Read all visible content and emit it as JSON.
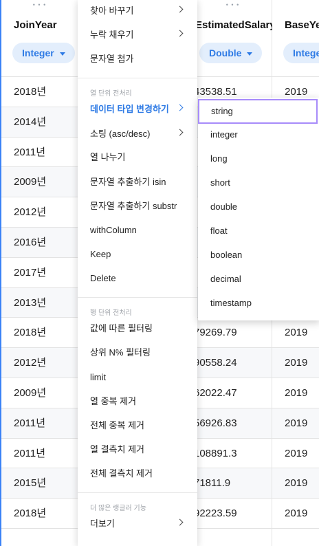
{
  "columns": {
    "join": {
      "name": "JoinYear",
      "type": "Integer",
      "values": [
        "2018년",
        "2014년",
        "2011년",
        "2009년",
        "2012년",
        "2016년",
        "2017년",
        "2013년",
        "2018년",
        "2012년",
        "2009년",
        "2011년",
        "2011년",
        "2015년",
        "2018년"
      ]
    },
    "est": {
      "name": "EstimatedSalary",
      "type": "Double",
      "values": [
        "43538.51",
        "",
        "",
        "",
        "",
        "",
        "",
        "",
        "79269.79",
        "90558.24",
        "62022.47",
        "56926.83",
        "108891.3",
        "71811.9",
        "92223.59"
      ]
    },
    "base": {
      "name": "BaseYe",
      "type": "Intege",
      "values": [
        "2019",
        "",
        "",
        "",
        "",
        "",
        "",
        "",
        "2019",
        "2019",
        "2019",
        "2019",
        "2019",
        "2019",
        "2019"
      ]
    }
  },
  "menu": {
    "items_top": [
      {
        "label": "찾아 바꾸기",
        "has_submenu": true
      },
      {
        "label": "누락 채우기",
        "has_submenu": true
      },
      {
        "label": "문자열 첨가",
        "has_submenu": false
      }
    ],
    "section_col": "열 단위 전처리",
    "items_col": [
      {
        "label": "데이터 타입 변경하기",
        "has_submenu": true,
        "active": true
      },
      {
        "label": "소팅 (asc/desc)",
        "has_submenu": true
      },
      {
        "label": "열 나누기",
        "has_submenu": false
      },
      {
        "label": "문자열 추출하기 isin",
        "has_submenu": false
      },
      {
        "label": "문자열 추출하기 substr",
        "has_submenu": false
      },
      {
        "label": "withColumn",
        "has_submenu": false
      },
      {
        "label": "Keep",
        "has_submenu": false
      },
      {
        "label": "Delete",
        "has_submenu": false
      }
    ],
    "section_row": "행 단위 전처리",
    "items_row": [
      {
        "label": "값에 따른 필터링",
        "has_submenu": false
      },
      {
        "label": "상위 N% 필터링",
        "has_submenu": false
      },
      {
        "label": "limit",
        "has_submenu": false
      },
      {
        "label": "열 중복 제거",
        "has_submenu": false
      },
      {
        "label": "전체 중복 제거",
        "has_submenu": false
      },
      {
        "label": "열 결측치 제거",
        "has_submenu": false
      },
      {
        "label": "전체 결측치 제거",
        "has_submenu": false
      }
    ],
    "section_more": "더 많은 랭글러 기능",
    "item_more": {
      "label": "더보기",
      "has_submenu": true
    }
  },
  "submenu": {
    "selected": "string",
    "items": [
      "string",
      "integer",
      "long",
      "short",
      "double",
      "float",
      "boolean",
      "decimal",
      "timestamp"
    ]
  },
  "colors": {
    "accent": "#2f7be5",
    "selection_border": "#a78bfa",
    "column_highlight": "#3b82f6"
  }
}
